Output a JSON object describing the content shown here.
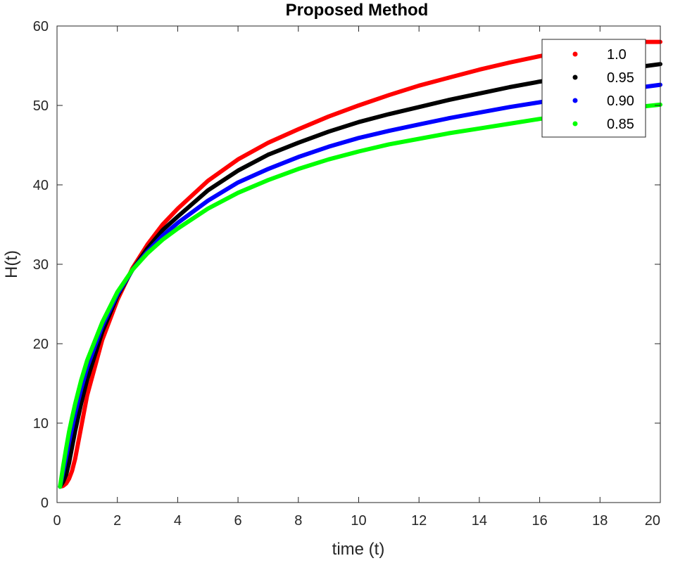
{
  "chart_data": {
    "type": "line",
    "title": "Proposed Method",
    "xlabel": "time (t)",
    "ylabel": "H(t)",
    "xlim": [
      0,
      20
    ],
    "ylim": [
      0,
      60
    ],
    "xticks": [
      "0",
      "2",
      "4",
      "6",
      "8",
      "10",
      "12",
      "14",
      "16",
      "18",
      "20"
    ],
    "yticks": [
      "0",
      "10",
      "20",
      "30",
      "40",
      "50",
      "60"
    ],
    "grid": false,
    "legend_position": "top-right",
    "x": [
      0.1,
      0.2,
      0.3,
      0.4,
      0.5,
      0.6,
      0.8,
      1,
      1.5,
      2,
      2.5,
      3,
      3.5,
      4,
      5,
      6,
      7,
      8,
      9,
      10,
      11,
      12,
      13,
      14,
      15,
      16,
      17,
      18,
      19,
      20
    ],
    "series": [
      {
        "name": "1.0",
        "color": "#ff0000",
        "values": [
          2.0,
          2.1,
          2.4,
          3.0,
          4.0,
          5.5,
          9.5,
          13.5,
          20.5,
          25.5,
          29.5,
          32.5,
          35.0,
          37.0,
          40.5,
          43.2,
          45.3,
          47.0,
          48.6,
          50.0,
          51.3,
          52.5,
          53.5,
          54.5,
          55.4,
          56.2,
          56.9,
          57.5,
          58.0,
          58.0
        ]
      },
      {
        "name": "0.95",
        "color": "#000000",
        "values": [
          2.0,
          2.6,
          3.5,
          5.0,
          7.0,
          9.0,
          12.5,
          15.5,
          21.5,
          26.0,
          29.3,
          32.0,
          34.3,
          36.0,
          39.3,
          41.8,
          43.8,
          45.3,
          46.7,
          47.9,
          48.9,
          49.8,
          50.7,
          51.5,
          52.3,
          53.0,
          53.6,
          54.2,
          54.7,
          55.2
        ]
      },
      {
        "name": "0.90",
        "color": "#0000ff",
        "values": [
          2.0,
          3.8,
          5.7,
          7.6,
          9.4,
          11.2,
          14.3,
          17.0,
          22.2,
          26.2,
          29.3,
          31.6,
          33.6,
          35.2,
          38.0,
          40.3,
          42.0,
          43.5,
          44.8,
          45.9,
          46.8,
          47.6,
          48.4,
          49.1,
          49.8,
          50.4,
          51.0,
          51.5,
          52.1,
          52.6
        ]
      },
      {
        "name": "0.85",
        "color": "#00ff00",
        "values": [
          2.0,
          4.5,
          6.8,
          8.9,
          10.7,
          12.4,
          15.4,
          17.9,
          22.7,
          26.5,
          29.3,
          31.4,
          33.1,
          34.5,
          37.0,
          39.0,
          40.6,
          42.0,
          43.2,
          44.2,
          45.1,
          45.8,
          46.5,
          47.1,
          47.7,
          48.3,
          48.8,
          49.3,
          49.7,
          50.1
        ]
      }
    ]
  }
}
